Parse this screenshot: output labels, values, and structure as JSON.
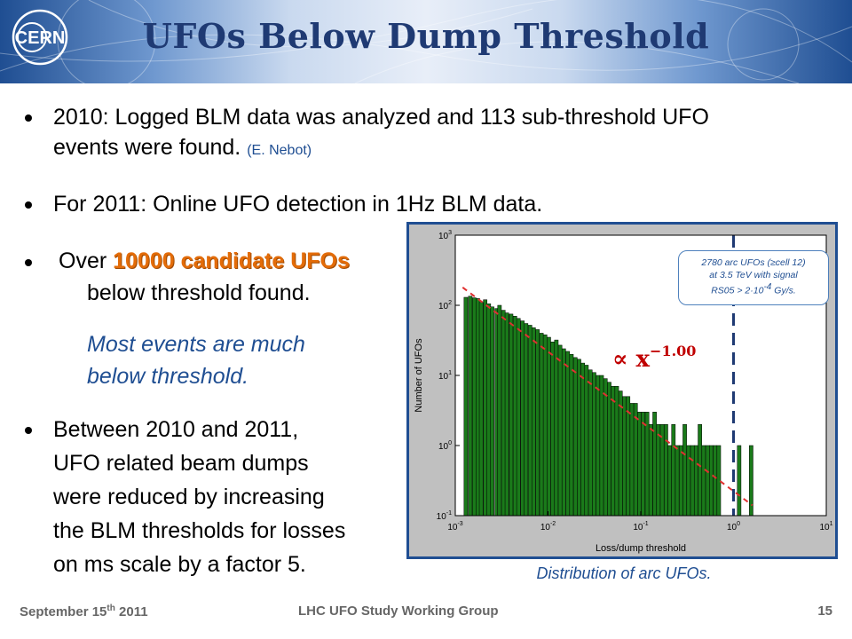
{
  "header": {
    "title": "UFOs Below Dump Threshold",
    "logo_text": "CERN"
  },
  "bullets": {
    "b1_text": "2010: Logged BLM data was analyzed and 113 sub-threshold UFO",
    "b1_text2": "events were found.",
    "b1_ref": "(E. Nebot)",
    "b2_text": "For 2011: Online UFO detection in 1Hz BLM data.",
    "b3_prefix": "Over ",
    "b3_highlight": "10000 candidate UFOs",
    "b3_text2": "below threshold found.",
    "b3_italic1": "Most events are much",
    "b3_italic2": "below threshold.",
    "b4_lines": [
      "Between 2010 and 2011,",
      "UFO related beam dumps",
      "were reduced by increasing",
      "the BLM thresholds for losses",
      "on ms scale by a factor 5."
    ]
  },
  "chart_annotation": {
    "line1": "2780 arc UFOs (≥cell 12)",
    "line2": "at 3.5 TeV with signal",
    "line3_prefix": "RS05 > 2·10",
    "line3_exp": "-4",
    "line3_suffix": " Gy/s."
  },
  "powerlaw": {
    "symbol": "∝ x",
    "exponent": "−1.00"
  },
  "caption": "Distribution of arc UFOs.",
  "footer": {
    "date_prefix": "September 15",
    "date_sup": "th",
    "date_suffix": " 2011",
    "group": "LHC UFO Study Working Group",
    "page": "15"
  },
  "colors": {
    "title": "#1f3a73",
    "highlight": "#e36c09",
    "bar": "#1a7a1a",
    "fit_line": "#e03030",
    "threshold_line": "#1f3a73"
  },
  "chart_data": {
    "type": "bar",
    "xlabel": "Loss/dump threshold",
    "ylabel": "Number of UFOs",
    "xscale": "log",
    "yscale": "log",
    "xlim": [
      0.001,
      10
    ],
    "ylim": [
      0.1,
      1000
    ],
    "x_ticks": [
      "10^-3",
      "10^-2",
      "10^-1",
      "10^0",
      "10^1"
    ],
    "y_ticks": [
      "10^-1",
      "10^0",
      "10^1",
      "10^2",
      "10^3"
    ],
    "threshold_x": 1.0,
    "fit": {
      "exponent": -1.0,
      "x": [
        0.0012,
        1.6
      ],
      "y": [
        180,
        0.14
      ]
    },
    "bins": [
      {
        "x": 0.0013,
        "y": 130
      },
      {
        "x": 0.00145,
        "y": 135
      },
      {
        "x": 0.0016,
        "y": 128
      },
      {
        "x": 0.00175,
        "y": 125
      },
      {
        "x": 0.0019,
        "y": 110
      },
      {
        "x": 0.0021,
        "y": 120
      },
      {
        "x": 0.0023,
        "y": 105
      },
      {
        "x": 0.0025,
        "y": 95
      },
      {
        "x": 0.0028,
        "y": 90
      },
      {
        "x": 0.003,
        "y": 100
      },
      {
        "x": 0.0033,
        "y": 85
      },
      {
        "x": 0.0036,
        "y": 78
      },
      {
        "x": 0.004,
        "y": 75
      },
      {
        "x": 0.0044,
        "y": 70
      },
      {
        "x": 0.0048,
        "y": 65
      },
      {
        "x": 0.0053,
        "y": 60
      },
      {
        "x": 0.0058,
        "y": 55
      },
      {
        "x": 0.0064,
        "y": 52
      },
      {
        "x": 0.007,
        "y": 48
      },
      {
        "x": 0.0077,
        "y": 45
      },
      {
        "x": 0.0085,
        "y": 40
      },
      {
        "x": 0.0093,
        "y": 38
      },
      {
        "x": 0.0102,
        "y": 35
      },
      {
        "x": 0.0112,
        "y": 30
      },
      {
        "x": 0.0123,
        "y": 32
      },
      {
        "x": 0.0135,
        "y": 27
      },
      {
        "x": 0.0148,
        "y": 24
      },
      {
        "x": 0.0163,
        "y": 22
      },
      {
        "x": 0.0179,
        "y": 20
      },
      {
        "x": 0.0197,
        "y": 18
      },
      {
        "x": 0.0216,
        "y": 17
      },
      {
        "x": 0.0237,
        "y": 15
      },
      {
        "x": 0.026,
        "y": 14
      },
      {
        "x": 0.0286,
        "y": 12
      },
      {
        "x": 0.0314,
        "y": 11
      },
      {
        "x": 0.0345,
        "y": 10
      },
      {
        "x": 0.0379,
        "y": 10
      },
      {
        "x": 0.0416,
        "y": 9
      },
      {
        "x": 0.0457,
        "y": 8
      },
      {
        "x": 0.0502,
        "y": 7
      },
      {
        "x": 0.0551,
        "y": 7
      },
      {
        "x": 0.0605,
        "y": 6
      },
      {
        "x": 0.0665,
        "y": 5
      },
      {
        "x": 0.073,
        "y": 5
      },
      {
        "x": 0.0802,
        "y": 4
      },
      {
        "x": 0.088,
        "y": 4
      },
      {
        "x": 0.0967,
        "y": 3
      },
      {
        "x": 0.106,
        "y": 3
      },
      {
        "x": 0.117,
        "y": 3
      },
      {
        "x": 0.128,
        "y": 2
      },
      {
        "x": 0.141,
        "y": 3
      },
      {
        "x": 0.155,
        "y": 2
      },
      {
        "x": 0.17,
        "y": 2
      },
      {
        "x": 0.187,
        "y": 2
      },
      {
        "x": 0.205,
        "y": 1
      },
      {
        "x": 0.225,
        "y": 2
      },
      {
        "x": 0.247,
        "y": 1
      },
      {
        "x": 0.272,
        "y": 1
      },
      {
        "x": 0.298,
        "y": 2
      },
      {
        "x": 0.328,
        "y": 1
      },
      {
        "x": 0.36,
        "y": 1
      },
      {
        "x": 0.395,
        "y": 1
      },
      {
        "x": 0.434,
        "y": 2
      },
      {
        "x": 0.477,
        "y": 1
      },
      {
        "x": 0.524,
        "y": 1
      },
      {
        "x": 0.575,
        "y": 1
      },
      {
        "x": 0.632,
        "y": 1
      },
      {
        "x": 0.694,
        "y": 1
      },
      {
        "x": 1.15,
        "y": 1
      },
      {
        "x": 1.55,
        "y": 1
      }
    ]
  }
}
